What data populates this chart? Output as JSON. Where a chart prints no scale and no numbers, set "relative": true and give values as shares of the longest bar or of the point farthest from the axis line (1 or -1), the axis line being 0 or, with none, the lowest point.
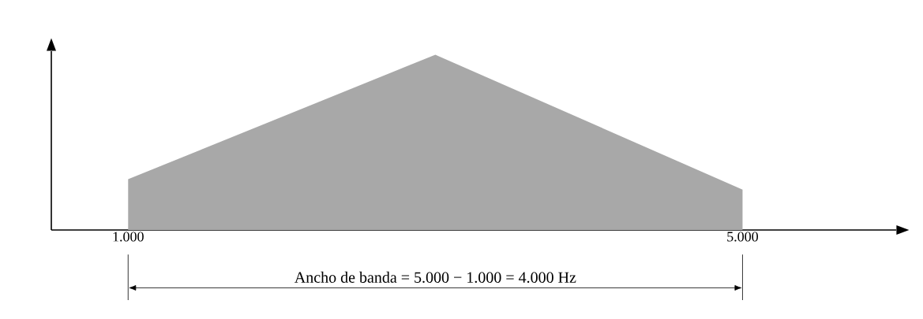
{
  "chart_data": {
    "type": "area",
    "relative": true,
    "x": [
      1000,
      3000,
      5000
    ],
    "values": [
      0.29,
      1,
      0.23
    ],
    "color": "#a8a8a8",
    "xlim": [
      500,
      6000
    ],
    "xticks": [
      {
        "value": 1000,
        "label": "1.000"
      },
      {
        "value": 5000,
        "label": "5.000"
      }
    ],
    "annotations": [
      "Ancho de banda = 5.000 − 1.000 = 4.000 Hz"
    ]
  }
}
